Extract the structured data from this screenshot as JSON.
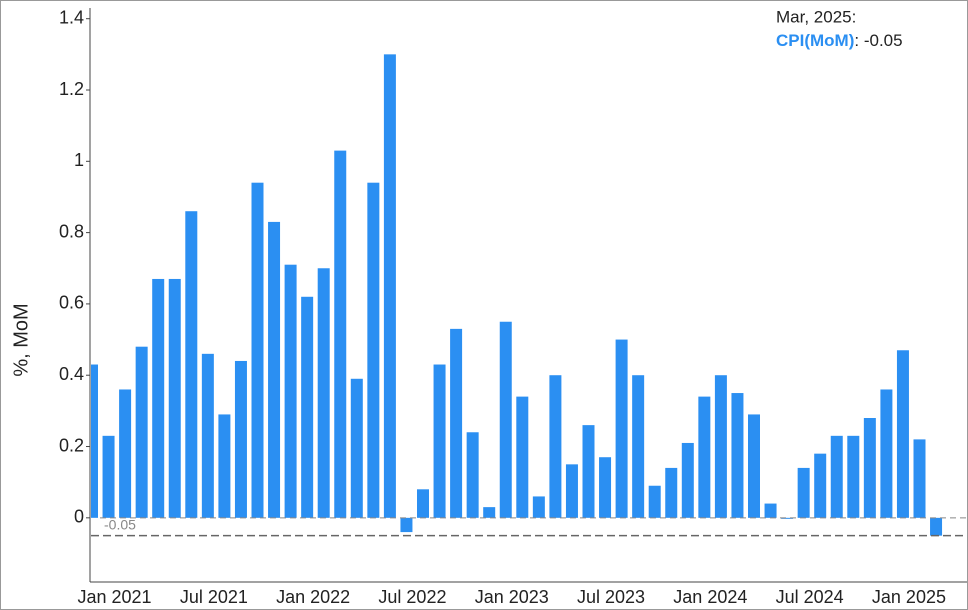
{
  "chart_data": {
    "type": "bar",
    "y_label": "%, MoM",
    "categories": [
      null,
      "Jan 2021",
      null,
      null,
      null,
      null,
      null,
      "Jul 2021",
      null,
      null,
      null,
      null,
      null,
      "Jan 2022",
      null,
      null,
      null,
      null,
      null,
      "Jul 2022",
      null,
      null,
      null,
      null,
      null,
      "Jan 2023",
      null,
      null,
      null,
      null,
      null,
      "Jul 2023",
      null,
      null,
      null,
      null,
      null,
      "Jan 2024",
      null,
      null,
      null,
      null,
      null,
      "Jul 2024",
      null,
      null,
      null,
      null,
      null,
      "Jan 2025",
      null,
      null
    ],
    "series": [
      {
        "name": "CPI(MoM)",
        "color": "#2b8ff2",
        "values": [
          0.43,
          0.23,
          0.36,
          0.48,
          0.67,
          0.67,
          0.86,
          0.46,
          0.29,
          0.44,
          0.94,
          0.83,
          0.71,
          0.62,
          0.7,
          1.03,
          0.39,
          0.94,
          1.3,
          -0.04,
          0.08,
          0.43,
          0.53,
          0.24,
          0.03,
          0.55,
          0.34,
          0.06,
          0.4,
          0.15,
          0.26,
          0.17,
          0.5,
          0.4,
          0.09,
          0.14,
          0.21,
          0.34,
          0.4,
          0.35,
          0.29,
          0.04,
          0.0,
          0.14,
          0.18,
          0.23,
          0.23,
          0.28,
          0.36,
          0.47,
          0.22,
          -0.05
        ]
      }
    ],
    "ylim": [
      -0.18,
      1.43
    ],
    "yticks": [
      0,
      0.2,
      0.4,
      0.6,
      0.8,
      1,
      1.2,
      1.4
    ],
    "reference_line": {
      "value": -0.05
    },
    "tooltip": {
      "title": "Mar, 2025:"
    }
  }
}
